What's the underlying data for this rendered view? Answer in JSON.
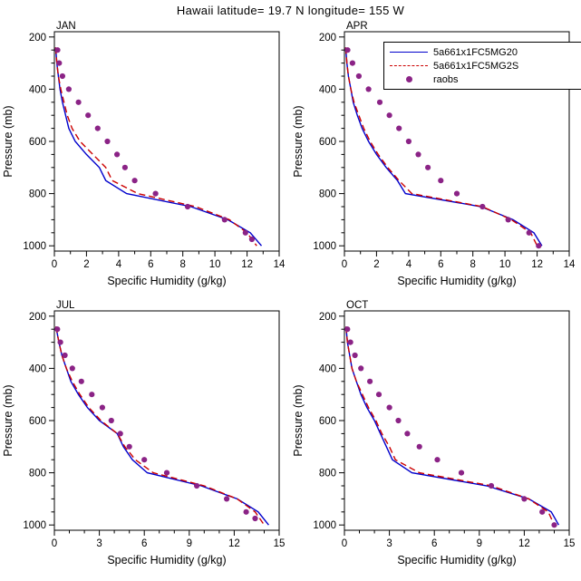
{
  "title": "Hawaii  latitude= 19.7 N  longitude= 155 W",
  "axis_labels": {
    "x": "Specific Humidity (g/kg)",
    "y": "Pressure (mb)"
  },
  "legend": {
    "entries": [
      {
        "label": "5a661x1FC5MG20",
        "style": "solid-line",
        "color": "#0000cc"
      },
      {
        "label": "5a661x1FC5MG2S",
        "style": "dashed-line",
        "color": "#cc0000"
      },
      {
        "label": "raobs",
        "style": "dot",
        "color": "#8b2386"
      }
    ]
  },
  "chart_data": [
    {
      "type": "line",
      "panel": "JAN",
      "xlabel": "Specific Humidity (g/kg)",
      "ylabel": "Pressure (mb)",
      "xlim": [
        0,
        14
      ],
      "xticks": [
        0,
        2,
        4,
        6,
        8,
        10,
        12,
        14
      ],
      "x_minor_step": 1,
      "ylim": [
        1000,
        200
      ],
      "yticks": [
        200,
        400,
        600,
        800,
        1000
      ],
      "y_minor_step": 50,
      "pressure_levels": [
        240,
        300,
        350,
        400,
        450,
        500,
        550,
        600,
        650,
        700,
        750,
        800,
        850,
        900,
        950,
        1000
      ],
      "series": [
        {
          "name": "5a661x1FC5MG20",
          "color": "#0000cc",
          "dash": "solid",
          "values": [
            0.08,
            0.15,
            0.25,
            0.35,
            0.5,
            0.7,
            0.9,
            1.3,
            2.0,
            2.8,
            3.2,
            4.5,
            8.5,
            10.8,
            12.2,
            12.9
          ]
        },
        {
          "name": "5a661x1FC5MG2S",
          "color": "#cc0000",
          "dash": "dashed",
          "values": [
            0.08,
            0.15,
            0.25,
            0.4,
            0.6,
            0.8,
            1.1,
            1.6,
            2.4,
            3.2,
            3.6,
            5.2,
            8.8,
            10.9,
            12.0,
            12.6
          ]
        }
      ],
      "raobs": {
        "name": "raobs",
        "color": "#8b2386",
        "points": [
          [
            0.2,
            250
          ],
          [
            0.3,
            300
          ],
          [
            0.5,
            350
          ],
          [
            0.9,
            400
          ],
          [
            1.5,
            450
          ],
          [
            2.1,
            500
          ],
          [
            2.7,
            550
          ],
          [
            3.3,
            600
          ],
          [
            3.9,
            650
          ],
          [
            4.4,
            700
          ],
          [
            5.0,
            750
          ],
          [
            6.3,
            800
          ],
          [
            8.3,
            850
          ],
          [
            10.6,
            900
          ],
          [
            11.9,
            950
          ],
          [
            12.3,
            975
          ]
        ]
      }
    },
    {
      "type": "line",
      "panel": "APR",
      "xlabel": "Specific Humidity (g/kg)",
      "ylabel": "Pressure (mb)",
      "xlim": [
        0,
        14
      ],
      "xticks": [
        0,
        2,
        4,
        6,
        8,
        10,
        12,
        14
      ],
      "x_minor_step": 1,
      "ylim": [
        1000,
        200
      ],
      "yticks": [
        200,
        400,
        600,
        800,
        1000
      ],
      "y_minor_step": 50,
      "pressure_levels": [
        240,
        300,
        350,
        400,
        450,
        500,
        550,
        600,
        650,
        700,
        750,
        800,
        850,
        900,
        950,
        1000
      ],
      "series": [
        {
          "name": "5a661x1FC5MG20",
          "color": "#0000cc",
          "dash": "solid",
          "values": [
            0.08,
            0.15,
            0.25,
            0.4,
            0.55,
            0.8,
            1.1,
            1.5,
            2.0,
            2.6,
            3.3,
            3.8,
            8.5,
            10.5,
            11.8,
            12.3
          ]
        },
        {
          "name": "5a661x1FC5MG2S",
          "color": "#cc0000",
          "dash": "dashed",
          "values": [
            0.08,
            0.15,
            0.25,
            0.4,
            0.6,
            0.9,
            1.2,
            1.6,
            2.1,
            2.7,
            3.4,
            4.2,
            8.6,
            10.4,
            11.6,
            12.0
          ]
        }
      ],
      "raobs": {
        "name": "raobs",
        "color": "#8b2386",
        "points": [
          [
            0.2,
            250
          ],
          [
            0.5,
            300
          ],
          [
            0.9,
            350
          ],
          [
            1.5,
            400
          ],
          [
            2.2,
            450
          ],
          [
            2.8,
            500
          ],
          [
            3.4,
            550
          ],
          [
            4.0,
            600
          ],
          [
            4.6,
            650
          ],
          [
            5.2,
            700
          ],
          [
            6.0,
            750
          ],
          [
            7.0,
            800
          ],
          [
            8.6,
            850
          ],
          [
            10.2,
            900
          ],
          [
            11.5,
            950
          ],
          [
            12.1,
            1000
          ]
        ]
      }
    },
    {
      "type": "line",
      "panel": "JUL",
      "xlabel": "Specific Humidity (g/kg)",
      "ylabel": "Pressure (mb)",
      "xlim": [
        0,
        15
      ],
      "xticks": [
        0,
        3,
        6,
        9,
        12,
        15
      ],
      "x_minor_step": 1,
      "ylim": [
        1000,
        200
      ],
      "yticks": [
        200,
        400,
        600,
        800,
        1000
      ],
      "y_minor_step": 50,
      "pressure_levels": [
        240,
        300,
        350,
        400,
        450,
        500,
        550,
        600,
        650,
        700,
        750,
        800,
        850,
        900,
        950,
        1000
      ],
      "series": [
        {
          "name": "5a661x1FC5MG20",
          "color": "#0000cc",
          "dash": "solid",
          "values": [
            0.1,
            0.3,
            0.5,
            0.8,
            1.1,
            1.6,
            2.2,
            3.0,
            4.2,
            4.6,
            5.2,
            6.2,
            9.8,
            12.2,
            13.6,
            14.3
          ]
        },
        {
          "name": "5a661x1FC5MG2S",
          "color": "#cc0000",
          "dash": "dashed",
          "values": [
            0.1,
            0.3,
            0.5,
            0.8,
            1.2,
            1.7,
            2.3,
            3.1,
            4.2,
            4.7,
            5.4,
            6.6,
            10.0,
            12.2,
            13.4,
            14.0
          ]
        }
      ],
      "raobs": {
        "name": "raobs",
        "color": "#8b2386",
        "points": [
          [
            0.2,
            250
          ],
          [
            0.4,
            300
          ],
          [
            0.7,
            350
          ],
          [
            1.2,
            400
          ],
          [
            1.8,
            450
          ],
          [
            2.5,
            500
          ],
          [
            3.2,
            550
          ],
          [
            3.8,
            600
          ],
          [
            4.4,
            650
          ],
          [
            5.0,
            700
          ],
          [
            6.0,
            750
          ],
          [
            7.5,
            800
          ],
          [
            9.5,
            850
          ],
          [
            11.5,
            900
          ],
          [
            12.8,
            950
          ],
          [
            13.4,
            975
          ]
        ]
      }
    },
    {
      "type": "line",
      "panel": "OCT",
      "xlabel": "Specific Humidity (g/kg)",
      "ylabel": "Pressure (mb)",
      "xlim": [
        0,
        15
      ],
      "xticks": [
        0,
        3,
        6,
        9,
        12,
        15
      ],
      "x_minor_step": 1,
      "ylim": [
        1000,
        200
      ],
      "yticks": [
        200,
        400,
        600,
        800,
        1000
      ],
      "y_minor_step": 50,
      "pressure_levels": [
        240,
        300,
        350,
        400,
        450,
        500,
        550,
        600,
        650,
        700,
        750,
        800,
        850,
        900,
        950,
        1000
      ],
      "series": [
        {
          "name": "5a661x1FC5MG20",
          "color": "#0000cc",
          "dash": "solid",
          "values": [
            0.1,
            0.2,
            0.35,
            0.5,
            0.8,
            1.1,
            1.5,
            2.0,
            2.4,
            2.8,
            3.2,
            4.5,
            9.5,
            12.3,
            13.8,
            14.3
          ]
        },
        {
          "name": "5a661x1FC5MG2S",
          "color": "#cc0000",
          "dash": "dashed",
          "values": [
            0.1,
            0.2,
            0.35,
            0.5,
            0.8,
            1.2,
            1.6,
            2.1,
            2.5,
            3.0,
            3.4,
            5.0,
            9.8,
            12.3,
            13.6,
            14.0
          ]
        }
      ],
      "raobs": {
        "name": "raobs",
        "color": "#8b2386",
        "points": [
          [
            0.2,
            250
          ],
          [
            0.4,
            300
          ],
          [
            0.7,
            350
          ],
          [
            1.1,
            400
          ],
          [
            1.7,
            450
          ],
          [
            2.3,
            500
          ],
          [
            3.0,
            550
          ],
          [
            3.6,
            600
          ],
          [
            4.2,
            650
          ],
          [
            5.0,
            700
          ],
          [
            6.2,
            750
          ],
          [
            7.8,
            800
          ],
          [
            9.8,
            850
          ],
          [
            12.0,
            900
          ],
          [
            13.2,
            950
          ],
          [
            14.0,
            1000
          ]
        ]
      }
    }
  ]
}
